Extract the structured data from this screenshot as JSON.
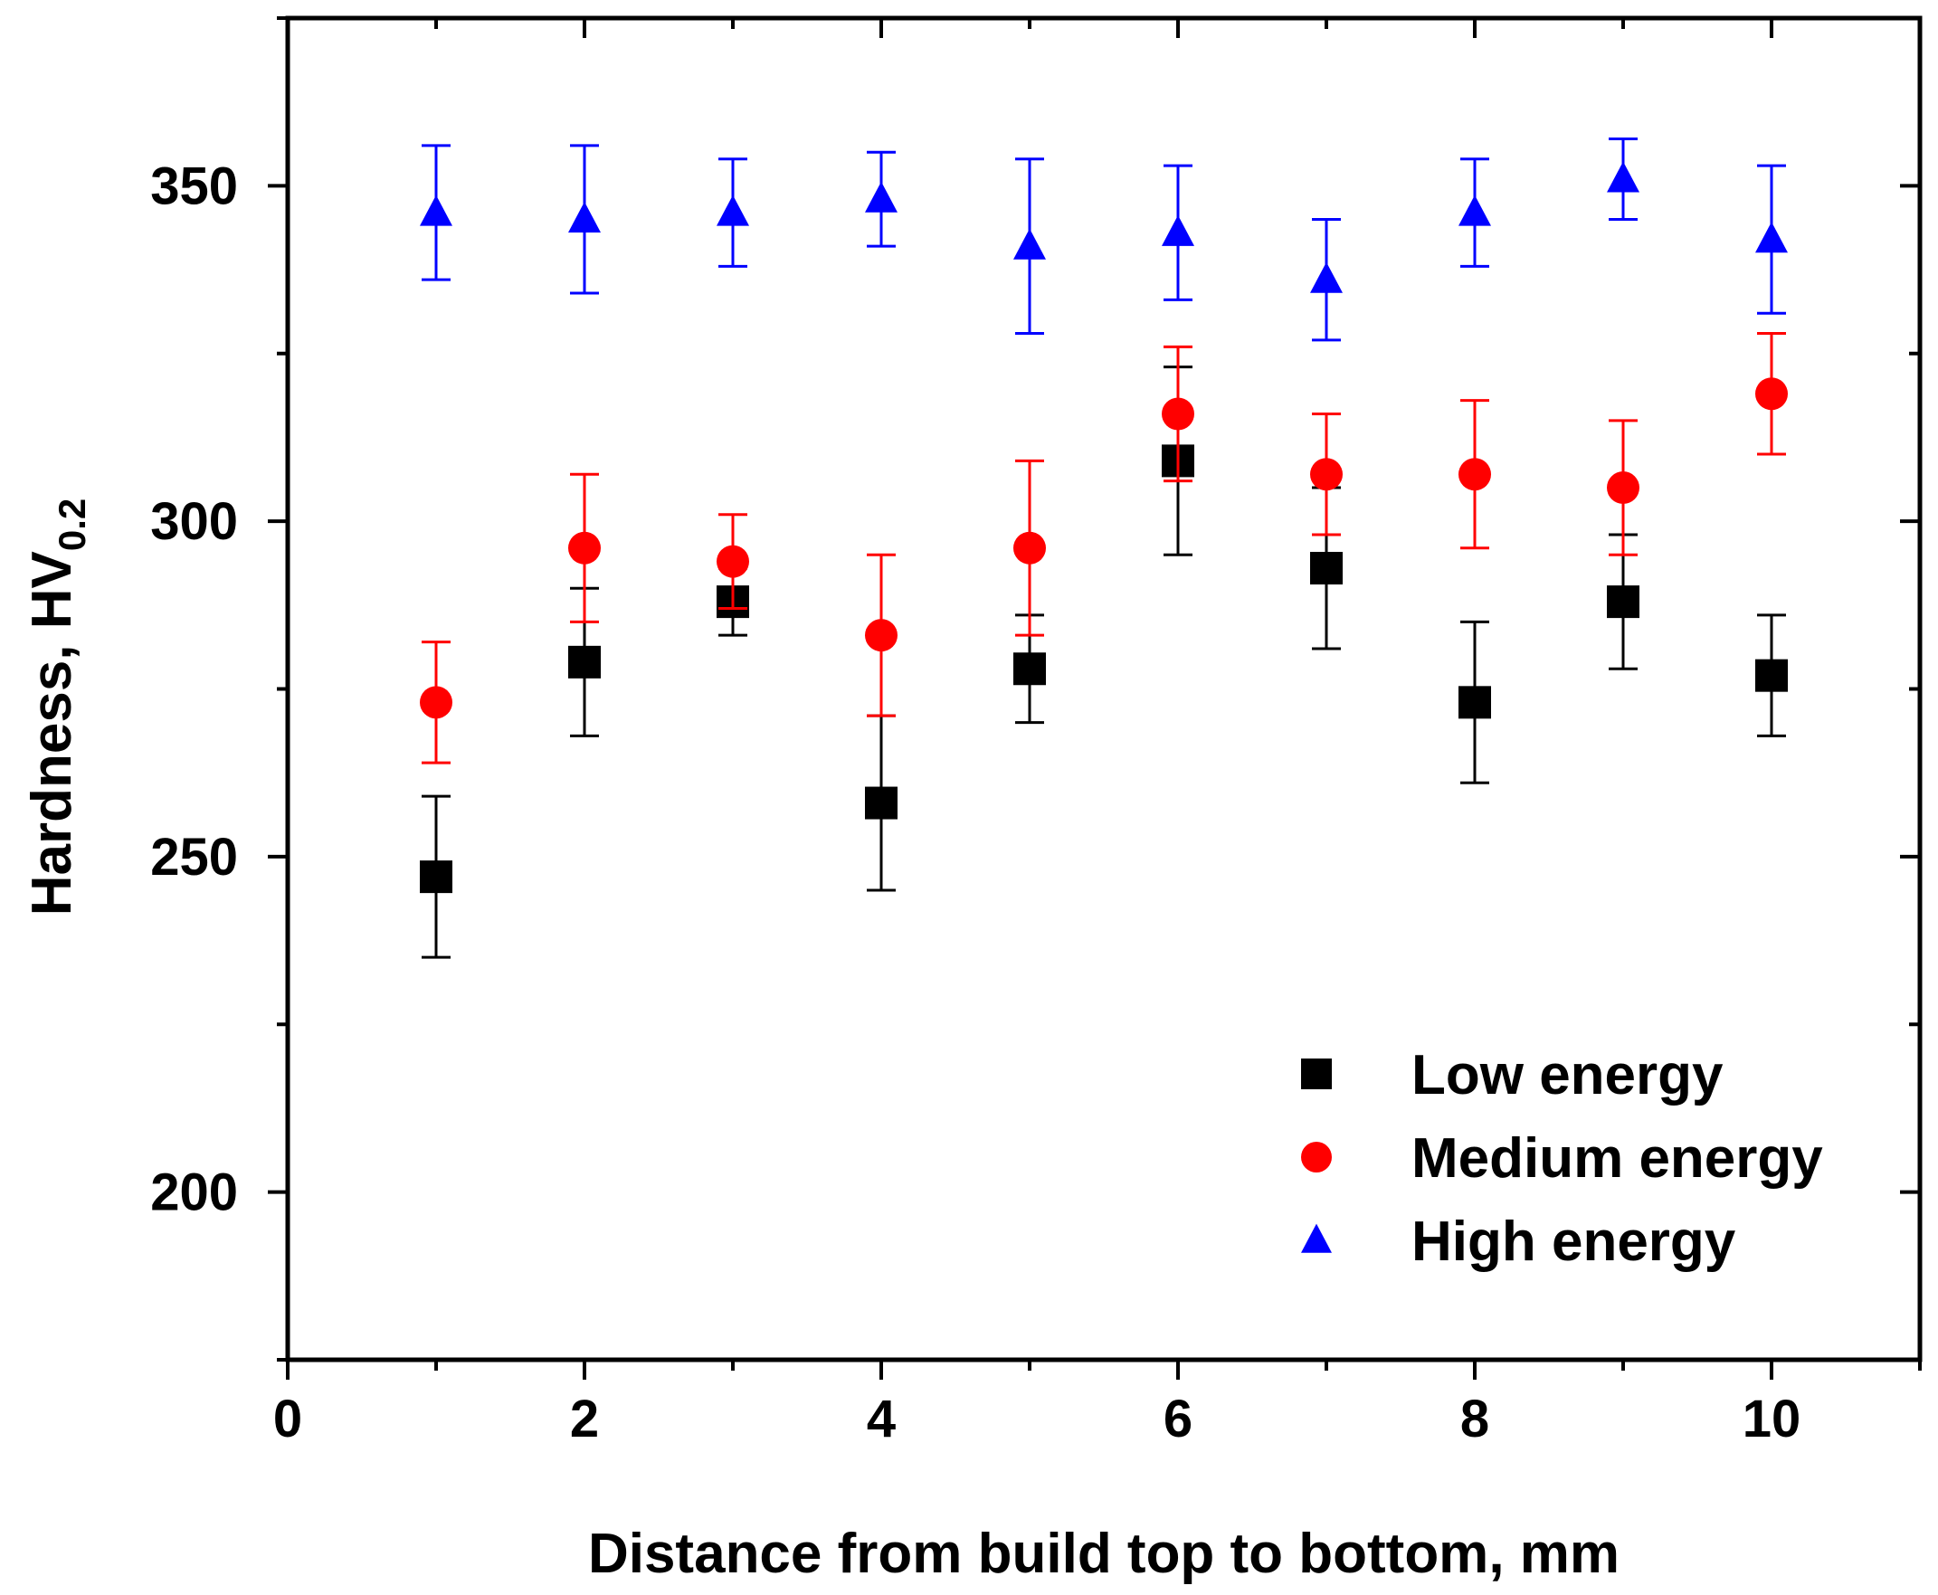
{
  "chart_data": {
    "type": "scatter",
    "xlabel": "Distance from build top to bottom, mm",
    "ylabel_main": "Hardness, HV",
    "ylabel_sub": "0.2",
    "xlim": [
      0,
      11
    ],
    "ylim": [
      175,
      375
    ],
    "x_ticks": [
      0,
      2,
      4,
      6,
      8,
      10
    ],
    "y_ticks": [
      200,
      250,
      300,
      350
    ],
    "grid": false,
    "legend_position": "bottom-right",
    "x": [
      1,
      2,
      3,
      4,
      5,
      6,
      7,
      8,
      9,
      10
    ],
    "series": [
      {
        "name": "Low energy",
        "marker": "square",
        "color": "#000000",
        "values": [
          247,
          279,
          288,
          258,
          278,
          309,
          293,
          273,
          288,
          277
        ],
        "errors": [
          12,
          11,
          5,
          13,
          8,
          14,
          12,
          12,
          10,
          9
        ]
      },
      {
        "name": "Medium energy",
        "marker": "circle",
        "color": "#ff0000",
        "values": [
          273,
          296,
          294,
          283,
          296,
          316,
          307,
          307,
          305,
          319
        ],
        "errors": [
          9,
          11,
          7,
          12,
          13,
          10,
          9,
          11,
          10,
          9
        ]
      },
      {
        "name": "High energy",
        "marker": "triangle",
        "color": "#0000ff",
        "values": [
          346,
          345,
          346,
          348,
          341,
          343,
          336,
          346,
          351,
          342
        ],
        "errors": [
          10,
          11,
          8,
          7,
          13,
          10,
          9,
          8,
          6,
          11
        ]
      }
    ]
  }
}
